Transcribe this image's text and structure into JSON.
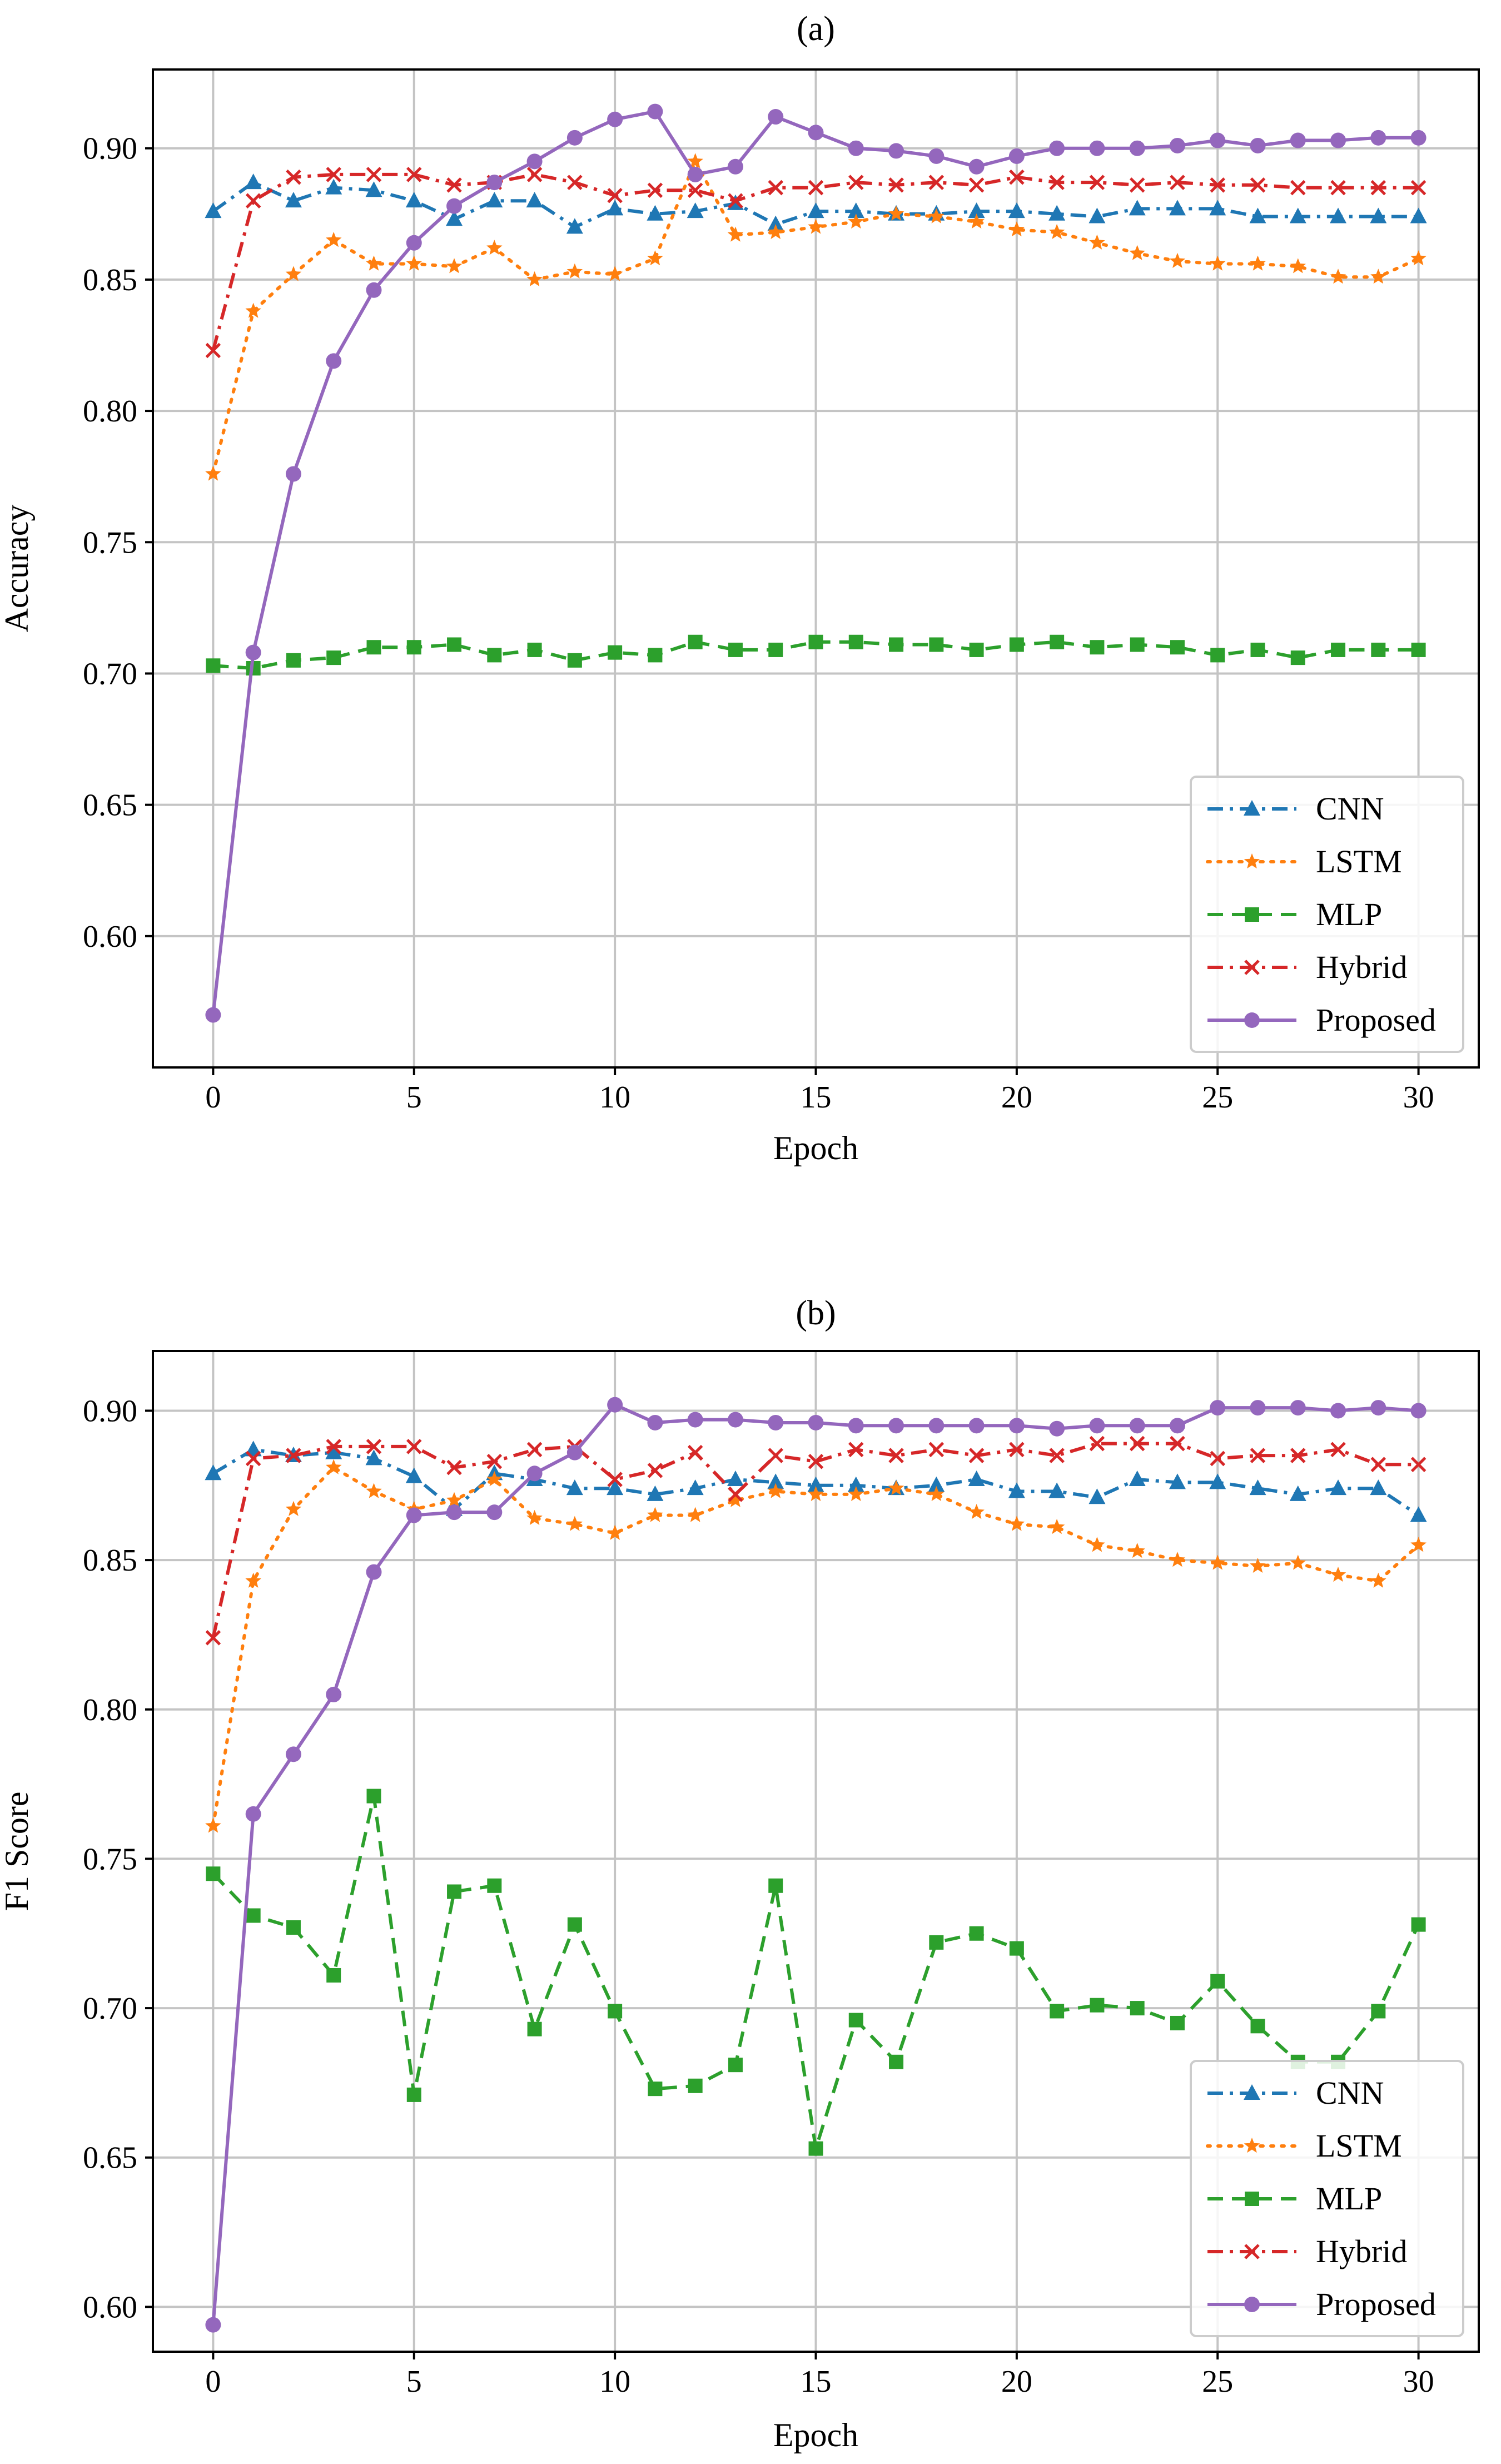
{
  "chart_data": [
    {
      "type": "line",
      "title": "(a)",
      "xlabel": "Epoch",
      "ylabel": "Accuracy",
      "xlim": [
        -1.5,
        31.5
      ],
      "ylim": [
        0.55,
        0.93
      ],
      "xticks": [
        0,
        5,
        10,
        15,
        20,
        25,
        30
      ],
      "yticks": [
        0.6,
        0.65,
        0.7,
        0.75,
        0.8,
        0.85,
        0.9
      ],
      "x": [
        0,
        1,
        2,
        3,
        4,
        5,
        6,
        7,
        8,
        9,
        10,
        11,
        12,
        13,
        14,
        15,
        16,
        17,
        18,
        19,
        20,
        21,
        22,
        23,
        24,
        25,
        26,
        27,
        28,
        29,
        30
      ],
      "legend_position": "lower-right",
      "series": [
        {
          "name": "CNN",
          "color": "#1f77b4",
          "dash": "dashdot",
          "marker": "triangle",
          "values": [
            0.876,
            0.887,
            0.88,
            0.885,
            0.884,
            0.88,
            0.873,
            0.88,
            0.88,
            0.87,
            0.877,
            0.875,
            0.876,
            0.879,
            0.871,
            0.876,
            0.876,
            0.875,
            0.875,
            0.876,
            0.876,
            0.875,
            0.874,
            0.877,
            0.877,
            0.877,
            0.874,
            0.874,
            0.874,
            0.874,
            0.874
          ]
        },
        {
          "name": "LSTM",
          "color": "#ff7f0e",
          "dash": "dotted",
          "marker": "star",
          "values": [
            0.776,
            0.838,
            0.852,
            0.865,
            0.856,
            0.856,
            0.855,
            0.862,
            0.85,
            0.853,
            0.852,
            0.858,
            0.895,
            0.867,
            0.868,
            0.87,
            0.872,
            0.875,
            0.874,
            0.872,
            0.869,
            0.868,
            0.864,
            0.86,
            0.857,
            0.856,
            0.856,
            0.855,
            0.851,
            0.851,
            0.858
          ]
        },
        {
          "name": "MLP",
          "color": "#2ca02c",
          "dash": "dashed",
          "marker": "square",
          "values": [
            0.703,
            0.702,
            0.705,
            0.706,
            0.71,
            0.71,
            0.711,
            0.707,
            0.709,
            0.705,
            0.708,
            0.707,
            0.712,
            0.709,
            0.709,
            0.712,
            0.712,
            0.711,
            0.711,
            0.709,
            0.711,
            0.712,
            0.71,
            0.711,
            0.71,
            0.707,
            0.709,
            0.706,
            0.709,
            0.709,
            0.709
          ]
        },
        {
          "name": "Hybrid",
          "color": "#d62728",
          "dash": "dashdot",
          "marker": "x",
          "values": [
            0.823,
            0.88,
            0.889,
            0.89,
            0.89,
            0.89,
            0.886,
            0.887,
            0.89,
            0.887,
            0.882,
            0.884,
            0.884,
            0.88,
            0.885,
            0.885,
            0.887,
            0.886,
            0.887,
            0.886,
            0.889,
            0.887,
            0.887,
            0.886,
            0.887,
            0.886,
            0.886,
            0.885,
            0.885,
            0.885,
            0.885
          ]
        },
        {
          "name": "Proposed",
          "color": "#9467bd",
          "dash": "solid",
          "marker": "circle",
          "values": [
            0.57,
            0.708,
            0.776,
            0.819,
            0.846,
            0.864,
            0.878,
            0.887,
            0.895,
            0.904,
            0.911,
            0.914,
            0.89,
            0.893,
            0.912,
            0.906,
            0.9,
            0.899,
            0.897,
            0.893,
            0.897,
            0.9,
            0.9,
            0.9,
            0.901,
            0.903,
            0.901,
            0.903,
            0.903,
            0.904,
            0.904
          ]
        }
      ]
    },
    {
      "type": "line",
      "title": "(b)",
      "xlabel": "Epoch",
      "ylabel": "F1 Score",
      "xlim": [
        -1.5,
        31.5
      ],
      "ylim": [
        0.585,
        0.92
      ],
      "xticks": [
        0,
        5,
        10,
        15,
        20,
        25,
        30
      ],
      "yticks": [
        0.6,
        0.65,
        0.7,
        0.75,
        0.8,
        0.85,
        0.9
      ],
      "x": [
        0,
        1,
        2,
        3,
        4,
        5,
        6,
        7,
        8,
        9,
        10,
        11,
        12,
        13,
        14,
        15,
        16,
        17,
        18,
        19,
        20,
        21,
        22,
        23,
        24,
        25,
        26,
        27,
        28,
        29,
        30
      ],
      "legend_position": "lower-right",
      "series": [
        {
          "name": "CNN",
          "color": "#1f77b4",
          "dash": "dashdot",
          "marker": "triangle",
          "values": [
            0.879,
            0.887,
            0.885,
            0.886,
            0.884,
            0.878,
            0.867,
            0.879,
            0.877,
            0.874,
            0.874,
            0.872,
            0.874,
            0.877,
            0.876,
            0.875,
            0.875,
            0.874,
            0.875,
            0.877,
            0.873,
            0.873,
            0.871,
            0.877,
            0.876,
            0.876,
            0.874,
            0.872,
            0.874,
            0.874,
            0.865
          ]
        },
        {
          "name": "LSTM",
          "color": "#ff7f0e",
          "dash": "dotted",
          "marker": "star",
          "values": [
            0.761,
            0.843,
            0.867,
            0.881,
            0.873,
            0.867,
            0.87,
            0.877,
            0.864,
            0.862,
            0.859,
            0.865,
            0.865,
            0.87,
            0.873,
            0.872,
            0.872,
            0.874,
            0.872,
            0.866,
            0.862,
            0.861,
            0.855,
            0.853,
            0.85,
            0.849,
            0.848,
            0.849,
            0.845,
            0.843,
            0.855
          ]
        },
        {
          "name": "MLP",
          "color": "#2ca02c",
          "dash": "dashed",
          "marker": "square",
          "values": [
            0.745,
            0.731,
            0.727,
            0.711,
            0.771,
            0.671,
            0.739,
            0.741,
            0.693,
            0.728,
            0.699,
            0.673,
            0.674,
            0.681,
            0.741,
            0.653,
            0.696,
            0.682,
            0.722,
            0.725,
            0.72,
            0.699,
            0.701,
            0.7,
            0.695,
            0.709,
            0.694,
            0.682,
            0.682,
            0.699,
            0.728
          ]
        },
        {
          "name": "Hybrid",
          "color": "#d62728",
          "dash": "dashdot",
          "marker": "x",
          "values": [
            0.824,
            0.884,
            0.885,
            0.888,
            0.888,
            0.888,
            0.881,
            0.883,
            0.887,
            0.888,
            0.877,
            0.88,
            0.886,
            0.872,
            0.885,
            0.883,
            0.887,
            0.885,
            0.887,
            0.885,
            0.887,
            0.885,
            0.889,
            0.889,
            0.889,
            0.884,
            0.885,
            0.885,
            0.887,
            0.882,
            0.882
          ]
        },
        {
          "name": "Proposed",
          "color": "#9467bd",
          "dash": "solid",
          "marker": "circle",
          "values": [
            0.594,
            0.765,
            0.785,
            0.805,
            0.846,
            0.865,
            0.866,
            0.866,
            0.879,
            0.886,
            0.902,
            0.896,
            0.897,
            0.897,
            0.896,
            0.896,
            0.895,
            0.895,
            0.895,
            0.895,
            0.895,
            0.894,
            0.895,
            0.895,
            0.895,
            0.901,
            0.901,
            0.901,
            0.9,
            0.901,
            0.9
          ]
        }
      ]
    }
  ]
}
